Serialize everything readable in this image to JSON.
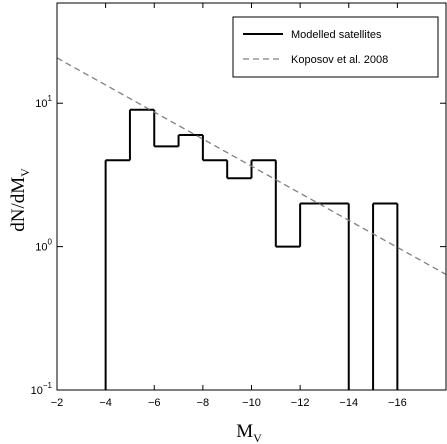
{
  "chart_data": {
    "type": "histogram",
    "xlabel": {
      "text": "M",
      "subscript": "V"
    },
    "ylabel": {
      "text": "dN/dM",
      "subscript": "V"
    },
    "bins": [
      -4,
      -5,
      -6,
      -7,
      -8,
      -9,
      -10,
      -11,
      -12,
      -13,
      -14,
      -15,
      -16
    ],
    "series": [
      {
        "name": "Modelled satellites",
        "color": "#000000",
        "values": [
          4,
          9,
          5,
          6,
          4,
          3,
          4,
          1,
          2,
          2,
          0,
          2
        ]
      },
      {
        "name": "Koposov et al. 2008",
        "type": "line",
        "color": "#808080",
        "dashed": true,
        "x": [
          -2,
          -18
        ],
        "values": [
          20.7,
          0.64
        ]
      }
    ],
    "xlim": [
      -2,
      -18
    ],
    "xticks": [
      {
        "value": -2,
        "label": "−2"
      },
      {
        "value": -4,
        "label": "−4"
      },
      {
        "value": -6,
        "label": "−6"
      },
      {
        "value": -8,
        "label": "−8"
      },
      {
        "value": -10,
        "label": "−10"
      },
      {
        "value": -12,
        "label": "−12"
      },
      {
        "value": -14,
        "label": "−14"
      },
      {
        "value": -16,
        "label": "−16"
      }
    ],
    "ylim": [
      0.1,
      50
    ],
    "yscale": "log",
    "yticks": [
      {
        "value": 0.1,
        "label": "10",
        "exponent": "−1"
      },
      {
        "value": 1,
        "label": "10",
        "exponent": "0"
      },
      {
        "value": 10,
        "label": "10",
        "exponent": "1"
      }
    ],
    "legend": "upper right"
  }
}
